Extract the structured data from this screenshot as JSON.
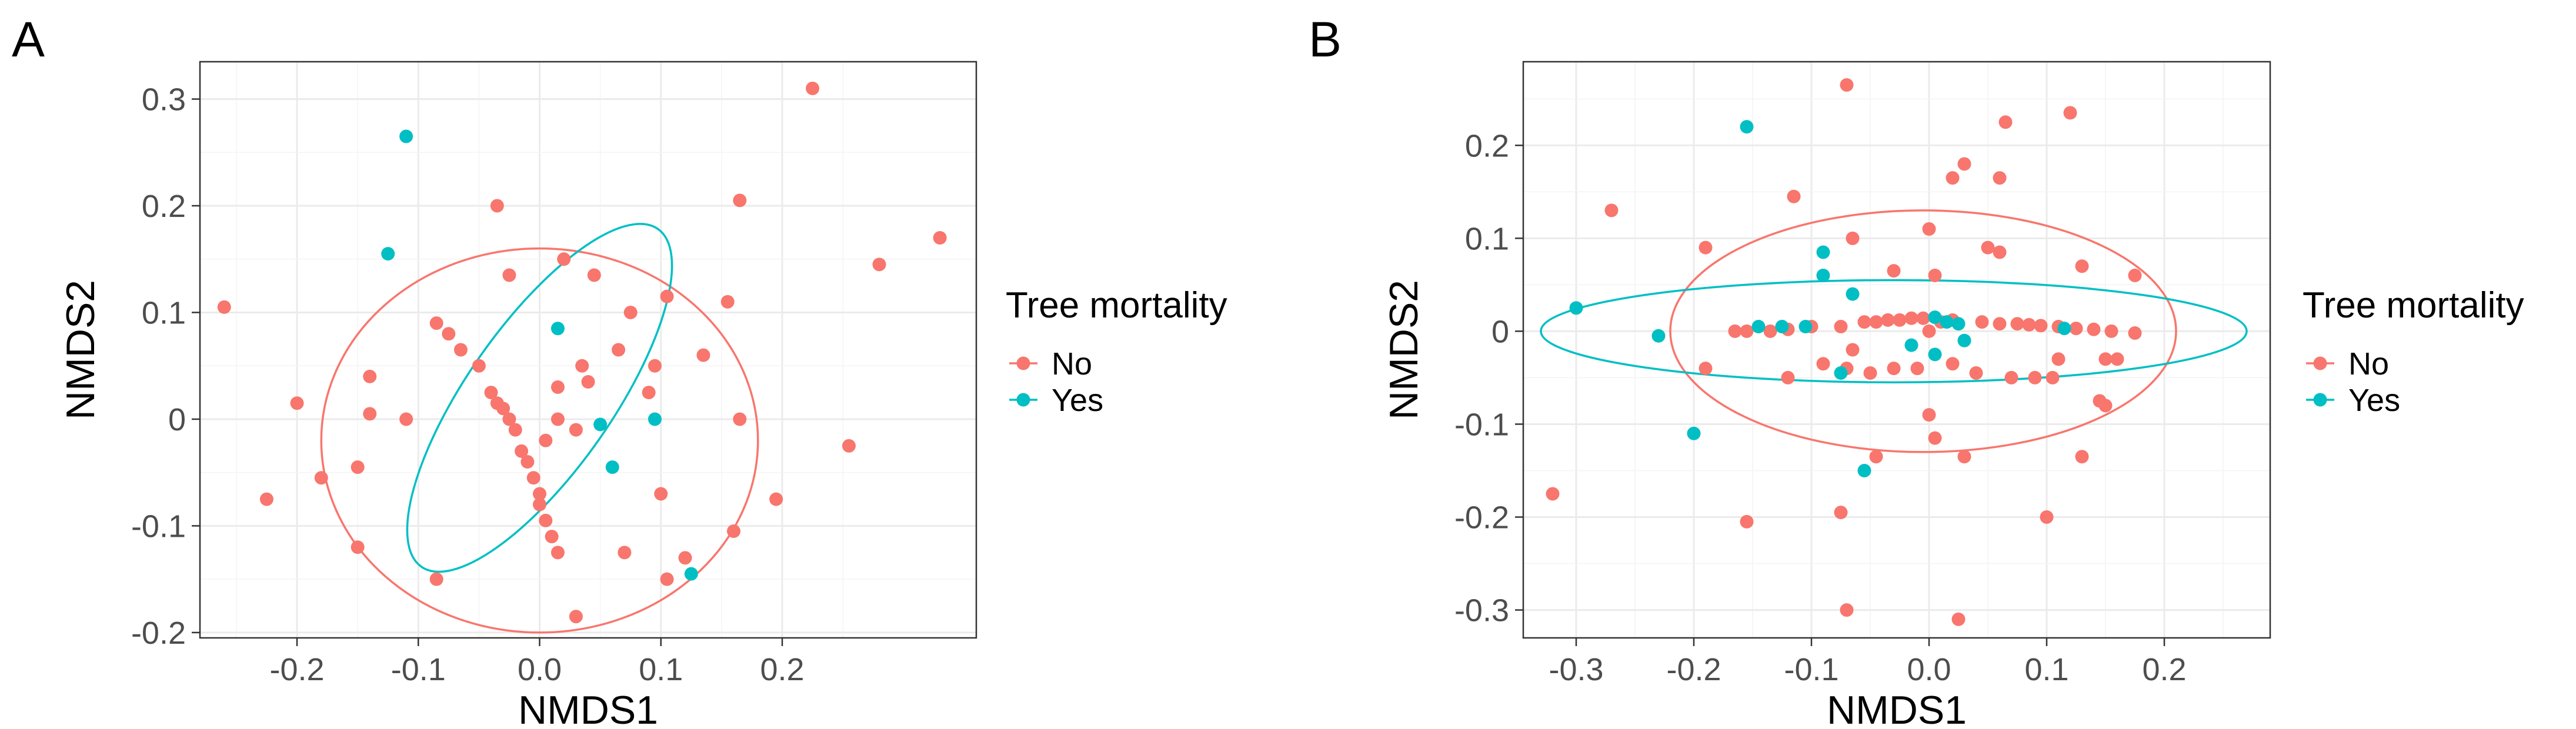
{
  "colors": {
    "No": "#F8766D",
    "Yes": "#00BFC4"
  },
  "chart_data": [
    {
      "type": "scatter",
      "panel_label": "A",
      "xlabel": "NMDS1",
      "ylabel": "NMDS2",
      "xlim": [
        -0.28,
        0.36
      ],
      "ylim": [
        -0.205,
        0.335
      ],
      "xticks": [
        -0.2,
        -0.1,
        0.0,
        0.1,
        0.2
      ],
      "xtick_labels": [
        "-0.2",
        "-0.1",
        "0.0",
        "0.1",
        "0.2"
      ],
      "yticks": [
        -0.2,
        -0.1,
        0.0,
        0.1,
        0.2,
        0.3
      ],
      "ytick_labels": [
        "-0.2",
        "-0.1",
        "0",
        "0.1",
        "0.2",
        "0.3"
      ],
      "legend": {
        "title": "Tree mortality",
        "entries": [
          "No",
          "Yes"
        ],
        "position": "right"
      },
      "ellipses": [
        {
          "name": "No",
          "center": [
            0.0,
            -0.02
          ],
          "rx": 0.18,
          "ry": 0.18,
          "angle": 0
        },
        {
          "name": "Yes",
          "center": [
            0.0,
            0.02
          ],
          "rx": 0.17,
          "ry": 0.068,
          "angle": -55
        }
      ],
      "series": [
        {
          "name": "No",
          "points": [
            [
              0.225,
              0.31
            ],
            [
              -0.035,
              0.2
            ],
            [
              0.165,
              0.205
            ],
            [
              0.33,
              0.17
            ],
            [
              0.28,
              0.145
            ],
            [
              0.02,
              0.15
            ],
            [
              0.045,
              0.135
            ],
            [
              -0.025,
              0.135
            ],
            [
              0.105,
              0.115
            ],
            [
              0.155,
              0.11
            ],
            [
              -0.26,
              0.105
            ],
            [
              0.075,
              0.1
            ],
            [
              -0.085,
              0.09
            ],
            [
              -0.075,
              0.08
            ],
            [
              0.065,
              0.065
            ],
            [
              0.035,
              0.05
            ],
            [
              0.135,
              0.06
            ],
            [
              -0.065,
              0.065
            ],
            [
              -0.05,
              0.05
            ],
            [
              0.095,
              0.05
            ],
            [
              0.04,
              0.035
            ],
            [
              0.015,
              0.03
            ],
            [
              -0.04,
              0.025
            ],
            [
              -0.035,
              0.015
            ],
            [
              0.09,
              0.025
            ],
            [
              0.015,
              0.0
            ],
            [
              0.005,
              -0.02
            ],
            [
              0.03,
              -0.01
            ],
            [
              0.165,
              0.0
            ],
            [
              -0.03,
              0.01
            ],
            [
              -0.025,
              0.0
            ],
            [
              -0.2,
              0.015
            ],
            [
              -0.14,
              0.04
            ],
            [
              -0.14,
              0.005
            ],
            [
              -0.11,
              0.0
            ],
            [
              -0.02,
              -0.01
            ],
            [
              -0.015,
              -0.03
            ],
            [
              -0.01,
              -0.04
            ],
            [
              -0.005,
              -0.055
            ],
            [
              0.0,
              -0.07
            ],
            [
              0.0,
              -0.08
            ],
            [
              0.005,
              -0.095
            ],
            [
              0.01,
              -0.11
            ],
            [
              0.015,
              -0.125
            ],
            [
              0.255,
              -0.025
            ],
            [
              -0.15,
              -0.045
            ],
            [
              -0.18,
              -0.055
            ],
            [
              -0.225,
              -0.075
            ],
            [
              0.1,
              -0.07
            ],
            [
              0.195,
              -0.075
            ],
            [
              0.16,
              -0.105
            ],
            [
              -0.15,
              -0.12
            ],
            [
              0.07,
              -0.125
            ],
            [
              0.12,
              -0.13
            ],
            [
              0.105,
              -0.15
            ],
            [
              -0.085,
              -0.15
            ],
            [
              0.03,
              -0.185
            ]
          ]
        },
        {
          "name": "Yes",
          "points": [
            [
              -0.11,
              0.265
            ],
            [
              -0.125,
              0.155
            ],
            [
              0.015,
              0.085
            ],
            [
              0.095,
              0.0
            ],
            [
              0.05,
              -0.005
            ],
            [
              0.06,
              -0.045
            ],
            [
              0.125,
              -0.145
            ]
          ]
        }
      ]
    },
    {
      "type": "scatter",
      "panel_label": "B",
      "xlabel": "NMDS1",
      "ylabel": "NMDS2",
      "xlim": [
        -0.345,
        0.29
      ],
      "ylim": [
        -0.33,
        0.29
      ],
      "xticks": [
        -0.3,
        -0.2,
        -0.1,
        0.0,
        0.1,
        0.2
      ],
      "xtick_labels": [
        "-0.3",
        "-0.2",
        "-0.1",
        "0.0",
        "0.1",
        "0.2"
      ],
      "yticks": [
        -0.3,
        -0.2,
        -0.1,
        0.0,
        0.1,
        0.2
      ],
      "ytick_labels": [
        "-0.3",
        "-0.2",
        "-0.1",
        "0",
        "0.1",
        "0.2"
      ],
      "legend": {
        "title": "Tree mortality",
        "entries": [
          "No",
          "Yes"
        ],
        "position": "right"
      },
      "ellipses": [
        {
          "name": "No",
          "center": [
            -0.005,
            0.0
          ],
          "rx": 0.215,
          "ry": 0.13,
          "angle": 0
        },
        {
          "name": "Yes",
          "center": [
            -0.03,
            0.0
          ],
          "rx": 0.3,
          "ry": 0.055,
          "angle": 0
        }
      ],
      "series": [
        {
          "name": "No",
          "points": [
            [
              -0.07,
              0.265
            ],
            [
              0.12,
              0.235
            ],
            [
              0.065,
              0.225
            ],
            [
              0.03,
              0.18
            ],
            [
              0.06,
              0.165
            ],
            [
              0.02,
              0.165
            ],
            [
              -0.115,
              0.145
            ],
            [
              -0.27,
              0.13
            ],
            [
              0.0,
              0.11
            ],
            [
              -0.065,
              0.1
            ],
            [
              -0.19,
              0.09
            ],
            [
              0.05,
              0.09
            ],
            [
              0.06,
              0.085
            ],
            [
              0.13,
              0.07
            ],
            [
              0.175,
              0.06
            ],
            [
              -0.03,
              0.065
            ],
            [
              0.005,
              0.06
            ],
            [
              -0.165,
              0.0
            ],
            [
              -0.155,
              0.0
            ],
            [
              -0.135,
              0.0
            ],
            [
              -0.12,
              0.002
            ],
            [
              -0.1,
              0.005
            ],
            [
              -0.075,
              0.005
            ],
            [
              -0.055,
              0.01
            ],
            [
              -0.045,
              0.01
            ],
            [
              -0.035,
              0.012
            ],
            [
              -0.025,
              0.012
            ],
            [
              -0.015,
              0.014
            ],
            [
              -0.005,
              0.014
            ],
            [
              0.01,
              0.01
            ],
            [
              0.02,
              0.012
            ],
            [
              0.045,
              0.01
            ],
            [
              0.06,
              0.008
            ],
            [
              0.075,
              0.008
            ],
            [
              0.085,
              0.007
            ],
            [
              0.095,
              0.006
            ],
            [
              0.11,
              0.005
            ],
            [
              0.125,
              0.003
            ],
            [
              0.14,
              0.002
            ],
            [
              0.155,
              0.0
            ],
            [
              0.175,
              -0.002
            ],
            [
              0.0,
              0.0
            ],
            [
              -0.065,
              -0.02
            ],
            [
              -0.09,
              -0.035
            ],
            [
              -0.07,
              -0.04
            ],
            [
              -0.05,
              -0.045
            ],
            [
              -0.03,
              -0.04
            ],
            [
              -0.01,
              -0.04
            ],
            [
              0.02,
              -0.035
            ],
            [
              0.04,
              -0.045
            ],
            [
              0.07,
              -0.05
            ],
            [
              0.09,
              -0.05
            ],
            [
              0.105,
              -0.05
            ],
            [
              -0.12,
              -0.05
            ],
            [
              -0.19,
              -0.04
            ],
            [
              0.11,
              -0.03
            ],
            [
              0.15,
              -0.03
            ],
            [
              0.16,
              -0.03
            ],
            [
              0.145,
              -0.075
            ],
            [
              0.15,
              -0.08
            ],
            [
              0.13,
              -0.135
            ],
            [
              0.0,
              -0.09
            ],
            [
              0.005,
              -0.115
            ],
            [
              0.03,
              -0.135
            ],
            [
              -0.045,
              -0.135
            ],
            [
              -0.075,
              -0.195
            ],
            [
              -0.155,
              -0.205
            ],
            [
              0.1,
              -0.2
            ],
            [
              -0.32,
              -0.175
            ],
            [
              -0.07,
              -0.3
            ],
            [
              0.025,
              -0.31
            ]
          ]
        },
        {
          "name": "Yes",
          "points": [
            [
              -0.155,
              0.22
            ],
            [
              -0.3,
              0.025
            ],
            [
              -0.23,
              -0.005
            ],
            [
              -0.2,
              -0.11
            ],
            [
              -0.09,
              0.085
            ],
            [
              -0.09,
              0.06
            ],
            [
              -0.065,
              0.04
            ],
            [
              -0.145,
              0.005
            ],
            [
              -0.125,
              0.005
            ],
            [
              -0.105,
              0.005
            ],
            [
              0.005,
              0.015
            ],
            [
              0.015,
              0.01
            ],
            [
              0.025,
              0.008
            ],
            [
              0.115,
              0.003
            ],
            [
              0.03,
              -0.01
            ],
            [
              -0.015,
              -0.015
            ],
            [
              0.005,
              -0.025
            ],
            [
              -0.075,
              -0.045
            ],
            [
              -0.055,
              -0.15
            ]
          ]
        }
      ]
    }
  ]
}
